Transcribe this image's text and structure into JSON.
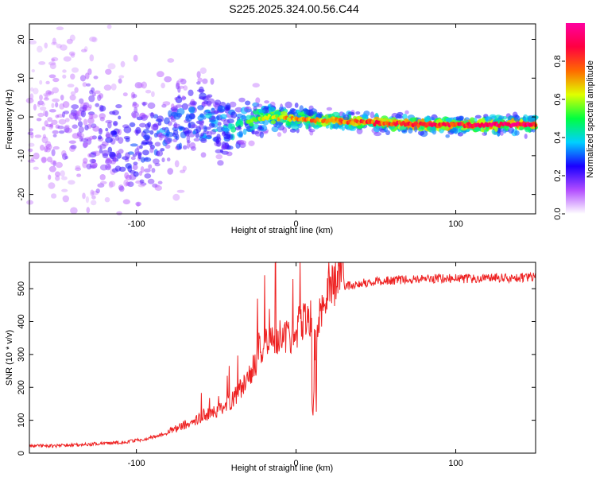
{
  "title": "S225.2025.324.00.56.C44",
  "chart_data": [
    {
      "type": "heatmap",
      "xlabel": "Height of straight line (km)",
      "ylabel": "Frequency (Hz)",
      "xlim": [
        -167,
        150
      ],
      "ylim": [
        -25,
        24
      ],
      "xticks": [
        -100,
        0,
        100
      ],
      "yticks": [
        -20,
        -10,
        0,
        10,
        20
      ],
      "colorbar": {
        "label": "Normalized spectral amplitude",
        "range": [
          0,
          1
        ],
        "ticks": [
          0.0,
          0.2,
          0.4,
          0.6,
          0.8
        ],
        "tick_labels": [
          "0.0",
          "0.2",
          "0.4",
          "0.6",
          "0.8"
        ],
        "colors": [
          "#ffffff",
          "#b24dff",
          "#1a00ff",
          "#00d0ff",
          "#00ff40",
          "#e0ff00",
          "#ff6a00",
          "#ff0040",
          "#ff00a0"
        ]
      },
      "ridge": {
        "x": [
          -167,
          -140,
          -120,
          -100,
          -80,
          -60,
          -40,
          -25,
          -10,
          0,
          20,
          50,
          80,
          100,
          130,
          150
        ],
        "frequency_hz": [
          -4,
          -3,
          -5,
          -8,
          -3,
          -1,
          -3,
          -0.5,
          0,
          -0.5,
          -1,
          -1.5,
          -2,
          -2,
          -2,
          -2
        ],
        "spread_hz": [
          14,
          13,
          11,
          8,
          6,
          5,
          4,
          2.5,
          1.8,
          1.5,
          1.2,
          1.0,
          1.0,
          1.0,
          1.0,
          1.0
        ],
        "amplitude": [
          0.15,
          0.2,
          0.25,
          0.3,
          0.35,
          0.4,
          0.45,
          0.55,
          0.65,
          0.7,
          0.75,
          0.8,
          0.85,
          0.85,
          0.9,
          0.9
        ]
      }
    },
    {
      "type": "line",
      "xlabel": "Height of straight line (km)",
      "ylabel": "SNR (10 * v/v)",
      "xlim": [
        -167,
        150
      ],
      "ylim": [
        0,
        580
      ],
      "xticks": [
        -100,
        0,
        100
      ],
      "yticks": [
        0,
        100,
        200,
        300,
        400,
        500
      ],
      "series": [
        {
          "name": "SNR",
          "color": "#ee2222",
          "x": [
            -167,
            -150,
            -130,
            -110,
            -95,
            -80,
            -70,
            -60,
            -50,
            -40,
            -30,
            -22,
            -15,
            -10,
            -5,
            0,
            5,
            10,
            12,
            15,
            20,
            25,
            30,
            40,
            60,
            80,
            100,
            120,
            150
          ],
          "values": [
            20,
            20,
            25,
            30,
            40,
            60,
            80,
            100,
            120,
            150,
            210,
            290,
            320,
            340,
            320,
            350,
            380,
            400,
            300,
            390,
            440,
            480,
            500,
            510,
            520,
            525,
            525,
            525,
            530
          ],
          "peaks": [
            {
              "x": -13,
              "value": 578
            },
            {
              "x": 22,
              "value": 505
            }
          ]
        }
      ]
    }
  ]
}
